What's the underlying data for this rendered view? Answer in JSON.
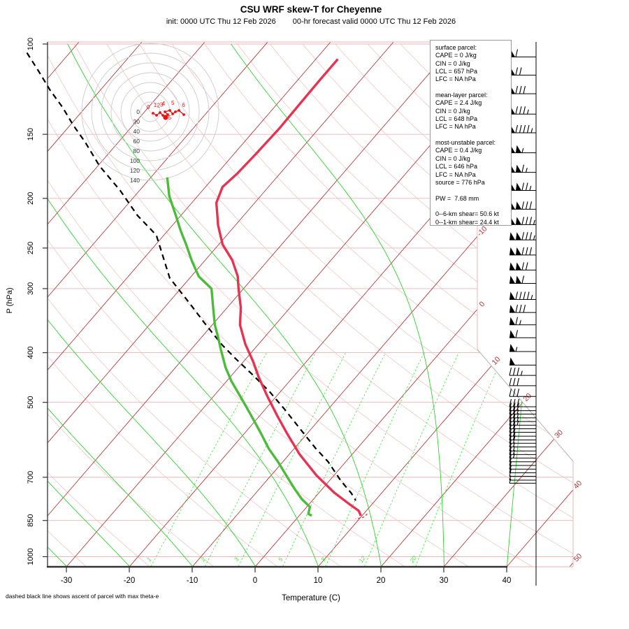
{
  "header": {
    "title": "CSU WRF skew-T for Cheyenne",
    "subtitle_left": "init: 0000 UTC Thu 12 Feb 2026",
    "subtitle_right": "00-hr forecast valid 0000 UTC Thu 12 Feb 2026"
  },
  "footnote": "dashed black line shows ascent of parcel with max theta-e",
  "info_box": {
    "lines": [
      "surface parcel:",
      "CAPE = 0 J/kg",
      "CIN = 0 J/kg",
      "LCL = 657 hPa",
      "LFC = NA hPa",
      "",
      "mean-layer parcel:",
      "CAPE = 2.4 J/kg",
      "CIN = 0 J/kg",
      "LCL = 648 hPa",
      "LFC = NA hPa",
      "",
      "most-unstable parcel:",
      "CAPE = 0.4 J/kg",
      "CIN = 0 J/kg",
      "LCL = 646 hPa",
      "LFC = NA hPa",
      "source = 776 hPa",
      "",
      "PW =  7.68 mm",
      "",
      "0--6-km shear= 50.6 kt",
      "0--1-km shear= 24.4 kt"
    ]
  },
  "chart_data": {
    "type": "line",
    "subtype": "skew-t-log-p",
    "title": "CSU WRF skew-T for Cheyenne",
    "x_axis": {
      "label": "Temperature (C)",
      "ticks": [
        -30,
        -20,
        -10,
        0,
        10,
        20,
        30,
        40
      ]
    },
    "y_axis": {
      "label": "P (hPa)",
      "ticks": [
        100,
        150,
        200,
        250,
        300,
        400,
        500,
        700,
        850,
        1000
      ],
      "scale": "log",
      "range": [
        100,
        1045
      ]
    },
    "isotherm_labels": [
      -10,
      0,
      10,
      20,
      30,
      40,
      50
    ],
    "mixing_ratio_lines": [
      1,
      2,
      3,
      5,
      8,
      12,
      20
    ],
    "moist_adiabat_surface_temps": [
      -30,
      -20,
      -10,
      0,
      10,
      20,
      30,
      40
    ],
    "dry_adiabat_thetas": [
      -40,
      -30,
      -20,
      -10,
      0,
      10,
      20,
      30,
      40,
      50,
      60,
      70,
      80,
      90,
      100,
      110,
      120,
      130,
      140,
      150,
      160,
      170,
      180
    ],
    "temperature_profile": [
      [
        107,
        -56.5
      ],
      [
        117,
        -56.5
      ],
      [
        131,
        -56.4
      ],
      [
        146,
        -56.3
      ],
      [
        163,
        -56.5
      ],
      [
        179,
        -56.8
      ],
      [
        190,
        -57.3
      ],
      [
        204,
        -56.1
      ],
      [
        226,
        -52.7
      ],
      [
        246,
        -49.4
      ],
      [
        264,
        -45.7
      ],
      [
        284,
        -42.6
      ],
      [
        300,
        -40.8
      ],
      [
        327,
        -37.8
      ],
      [
        353,
        -35.6
      ],
      [
        385,
        -32.1
      ],
      [
        416,
        -28.5
      ],
      [
        447,
        -25.4
      ],
      [
        488,
        -21.3
      ],
      [
        531,
        -17.2
      ],
      [
        574,
        -13.3
      ],
      [
        631,
        -8.4
      ],
      [
        694,
        -2.8
      ],
      [
        750,
        2.4
      ],
      [
        791,
        6.5
      ],
      [
        814,
        8.8
      ],
      [
        832,
        9.8
      ]
    ],
    "virtual_temp_tail": [
      [
        826,
        10.6
      ],
      [
        838,
        10.4
      ],
      [
        844,
        9.4
      ]
    ],
    "dewpoint_profile": [
      [
        182,
        -67.4
      ],
      [
        198,
        -64.5
      ],
      [
        216,
        -60.8
      ],
      [
        231,
        -58.0
      ],
      [
        246,
        -55.2
      ],
      [
        265,
        -52.0
      ],
      [
        284,
        -48.8
      ],
      [
        300,
        -45.1
      ],
      [
        327,
        -42.2
      ],
      [
        353,
        -39.6
      ],
      [
        373,
        -37.4
      ],
      [
        394,
        -35.3
      ],
      [
        410,
        -33.7
      ],
      [
        427,
        -32.1
      ],
      [
        454,
        -29.3
      ],
      [
        491,
        -25.3
      ],
      [
        526,
        -21.8
      ],
      [
        571,
        -17.7
      ],
      [
        616,
        -14.0
      ],
      [
        655,
        -10.6
      ],
      [
        694,
        -7.6
      ],
      [
        739,
        -4.3
      ],
      [
        773,
        -1.8
      ],
      [
        800,
        0.5
      ],
      [
        825,
        1.2
      ],
      [
        832,
        2.0
      ]
    ],
    "parcel_profile": [
      [
        104,
        -106.8
      ],
      [
        113,
        -102.4
      ],
      [
        123,
        -98.0
      ],
      [
        133,
        -93.6
      ],
      [
        144,
        -89.5
      ],
      [
        155,
        -85.4
      ],
      [
        173,
        -79.7
      ],
      [
        193,
        -73.1
      ],
      [
        216,
        -66.9
      ],
      [
        236,
        -61.2
      ],
      [
        286,
        -53.2
      ],
      [
        323,
        -46.1
      ],
      [
        350,
        -41.5
      ],
      [
        385,
        -35.9
      ],
      [
        410,
        -31.8
      ],
      [
        440,
        -27.0
      ],
      [
        476,
        -21.8
      ],
      [
        516,
        -16.9
      ],
      [
        562,
        -11.9
      ],
      [
        614,
        -6.7
      ],
      [
        653,
        -2.8
      ],
      [
        712,
        1.9
      ],
      [
        752,
        5.2
      ],
      [
        777,
        6.9
      ]
    ],
    "wind_barbs_kt": [
      [
        106,
        60
      ],
      [
        115,
        70
      ],
      [
        125,
        80
      ],
      [
        137,
        85
      ],
      [
        149,
        95
      ],
      [
        163,
        105
      ],
      [
        178,
        115
      ],
      [
        193,
        125
      ],
      [
        210,
        130
      ],
      [
        225,
        135
      ],
      [
        241,
        135
      ],
      [
        258,
        130
      ],
      [
        276,
        120
      ],
      [
        293,
        110
      ],
      [
        315,
        95
      ],
      [
        334,
        80
      ],
      [
        353,
        65
      ],
      [
        374,
        60
      ],
      [
        398,
        55
      ],
      [
        423,
        50
      ],
      [
        443,
        35
      ],
      [
        464,
        30
      ],
      [
        487,
        30
      ],
      [
        510,
        30
      ],
      [
        519,
        30
      ],
      [
        527,
        25
      ],
      [
        536,
        25
      ],
      [
        545,
        25
      ],
      [
        554,
        25
      ],
      [
        563,
        20
      ],
      [
        572,
        20
      ],
      [
        582,
        20
      ],
      [
        592,
        20
      ],
      [
        601,
        20
      ],
      [
        611,
        15
      ],
      [
        622,
        15
      ],
      [
        632,
        15
      ],
      [
        642,
        15
      ],
      [
        653,
        10
      ],
      [
        664,
        10
      ],
      [
        675,
        10
      ],
      [
        686,
        10
      ],
      [
        697,
        10
      ],
      [
        709,
        5
      ],
      [
        719,
        5
      ]
    ],
    "hodograph": {
      "ring_interval_kt": 20,
      "ring_labels": [
        0,
        20,
        40,
        60,
        80,
        100,
        120,
        140
      ],
      "trace_uv_kt": [
        [
          5.7,
          -2.9
        ],
        [
          12.9,
          -7.1
        ],
        [
          20,
          -1.4
        ],
        [
          25.7,
          -7.1
        ],
        [
          31.4,
          -11.4
        ],
        [
          35.7,
          -5.7
        ],
        [
          30,
          0
        ],
        [
          40,
          2.9
        ],
        [
          45.7,
          -4.3
        ],
        [
          51.4,
          0
        ],
        [
          58.6,
          2.9
        ],
        [
          68.6,
          -5.7
        ]
      ],
      "height_labels": [
        {
          "text": "0",
          "u": -4,
          "v": 6
        },
        {
          "text": "1",
          "u": 10,
          "v": 10
        },
        {
          "text": "2",
          "u": 17,
          "v": 9
        },
        {
          "text": "3",
          "u": 23,
          "v": 11
        },
        {
          "text": "4",
          "u": 27,
          "v": 13
        },
        {
          "text": "5",
          "u": 46,
          "v": 14
        },
        {
          "text": "5",
          "u": 40,
          "v": -16
        },
        {
          "text": "6",
          "u": 68,
          "v": 10
        }
      ]
    },
    "colors": {
      "isotherm": "#b23232",
      "dry_adiabat": "#eec6c6",
      "pressure_line": "#e8b4b4",
      "moist_adiabat": "#2fd32f",
      "mixing_ratio": "#4ae84a",
      "temperature": "#e73352",
      "dewpoint": "#4cbb3c",
      "parcel": "#000000",
      "hodograph_ring": "#cccccc",
      "hodograph_trace": "#ee1111",
      "barb": "#000000",
      "axis": "#333333"
    }
  }
}
